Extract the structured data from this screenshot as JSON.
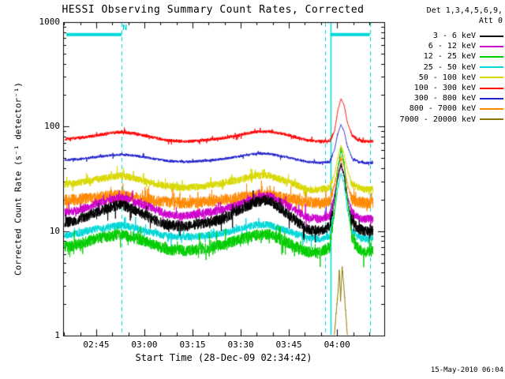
{
  "title": "HESSI Observing Summary Count Rates, Corrected",
  "timestamp": "15-May-2010 06:04",
  "legend": {
    "header_line1": "Det 1,3,4,5,6,9,",
    "header_line2": "Att 0",
    "entries": [
      {
        "label": "3 - 6 keV",
        "color": "#000000"
      },
      {
        "label": "6 - 12 keV",
        "color": "#cc00cc"
      },
      {
        "label": "12 - 25 keV",
        "color": "#00cc00"
      },
      {
        "label": "25 - 50 keV",
        "color": "#00d7d7"
      },
      {
        "label": "50 - 100 keV",
        "color": "#d8d800"
      },
      {
        "label": "100 - 300 keV",
        "color": "#ff0000"
      },
      {
        "label": "300 - 800 keV",
        "color": "#2222cc"
      },
      {
        "label": "800 - 7000 keV",
        "color": "#ff8800"
      },
      {
        "label": "7000 - 20000 keV",
        "color": "#8b7500"
      }
    ]
  },
  "chart_data": {
    "type": "line",
    "title": "HESSI Observing Summary Count Rates, Corrected",
    "xlabel": "Start Time (28-Dec-09 02:34:42)",
    "ylabel": "Corrected Count Rate (s⁻¹ detector⁻¹)",
    "x_unit": "minutes since 02:34:42",
    "xlim": [
      0,
      100
    ],
    "ylim": [
      1,
      1000
    ],
    "yscale": "log",
    "grid": false,
    "legend_position": "top-right",
    "xticks": [
      {
        "t": 10.3,
        "label": "02:45"
      },
      {
        "t": 25.3,
        "label": "03:00"
      },
      {
        "t": 40.3,
        "label": "03:15"
      },
      {
        "t": 55.3,
        "label": "03:30"
      },
      {
        "t": 70.3,
        "label": "03:45"
      },
      {
        "t": 85.3,
        "label": "04:00"
      }
    ],
    "yticks": [
      {
        "v": 1,
        "label": "1"
      },
      {
        "v": 10,
        "label": "10"
      },
      {
        "v": 100,
        "label": "100"
      },
      {
        "v": 1000,
        "label": "1000"
      }
    ],
    "x_minor_step_min": 5,
    "t_grid": [
      0.5,
      5,
      10,
      15,
      18,
      22,
      27,
      32,
      38,
      44,
      50,
      55,
      60,
      64,
      68,
      72,
      76,
      80,
      83,
      84.5,
      85.5,
      86.5,
      87.5,
      88.5,
      90,
      92,
      94,
      96.5
    ],
    "series": [
      {
        "name": "3 - 6 keV",
        "color": "#000000",
        "noise_dex": 0.05,
        "values": [
          12,
          13,
          15,
          17,
          18,
          16,
          13.5,
          11.5,
          11,
          12,
          13,
          16,
          19,
          20,
          16,
          13,
          10.5,
          10,
          11,
          20,
          32,
          44,
          34,
          20,
          12,
          10.5,
          10,
          10
        ]
      },
      {
        "name": "6 - 12 keV",
        "color": "#cc00cc",
        "noise_dex": 0.04,
        "values": [
          15,
          16,
          18,
          20,
          21,
          19,
          17,
          14.5,
          14,
          15,
          16,
          18,
          21,
          22,
          19,
          16,
          13.5,
          13,
          14,
          22,
          33,
          43,
          35,
          22,
          15,
          13.5,
          13,
          13
        ]
      },
      {
        "name": "12 - 25 keV",
        "color": "#00cc00",
        "noise_dex": 0.055,
        "values": [
          7,
          7.5,
          8.5,
          9,
          9.3,
          8.7,
          7.7,
          6.7,
          6.5,
          6.8,
          7.5,
          8.3,
          9.2,
          9.3,
          8.3,
          7.2,
          6.3,
          6.2,
          7,
          15,
          38,
          62,
          45,
          20,
          8.5,
          6.8,
          6.4,
          6.4
        ]
      },
      {
        "name": "25 - 50 keV",
        "color": "#00d7d7",
        "noise_dex": 0.035,
        "values": [
          9,
          9.5,
          10.5,
          11,
          11.5,
          10.8,
          9.8,
          9,
          8.8,
          9,
          9.6,
          10.5,
          11.5,
          11.5,
          10.5,
          9.5,
          8.6,
          8.4,
          9,
          15,
          25,
          36,
          28,
          16,
          10,
          8.8,
          8.5,
          8.5
        ]
      },
      {
        "name": "50 - 100 keV",
        "color": "#d8d800",
        "noise_dex": 0.035,
        "values": [
          28,
          29,
          31,
          33,
          34,
          32,
          29,
          27,
          26,
          27,
          29,
          31,
          34,
          34,
          31,
          28,
          25,
          25,
          26,
          35,
          50,
          65,
          55,
          38,
          28,
          26,
          25,
          25
        ]
      },
      {
        "name": "100 - 300 keV",
        "color": "#ff0000",
        "noise_dex": 0.015,
        "values": [
          76,
          78,
          82,
          87,
          89,
          86,
          80,
          74,
          72,
          74,
          78,
          83,
          89,
          90,
          86,
          80,
          74,
          72,
          73,
          90,
          140,
          185,
          160,
          110,
          82,
          74,
          72,
          72
        ]
      },
      {
        "name": "300 - 800 keV",
        "color": "#2222cc",
        "noise_dex": 0.012,
        "values": [
          48,
          49,
          51,
          53,
          54,
          53,
          50,
          47,
          46,
          47,
          49,
          52,
          55,
          55,
          52,
          49,
          46,
          45,
          46,
          60,
          85,
          105,
          90,
          65,
          50,
          46,
          45,
          45
        ]
      },
      {
        "name": "800 - 7000 keV",
        "color": "#ff8800",
        "noise_dex": 0.055,
        "values": [
          20,
          20,
          21,
          22,
          22,
          21,
          20,
          19,
          18.5,
          19,
          20,
          21,
          22,
          22,
          21,
          20,
          19,
          18.5,
          19,
          28,
          40,
          52,
          42,
          28,
          20,
          19,
          18.5,
          18.5
        ]
      },
      {
        "name": "7000 - 20000 keV",
        "color": "#8b7500",
        "noise_dex": 0.05,
        "points": [
          [
            83.5,
            0.5
          ],
          [
            84.3,
            0.9
          ],
          [
            85,
            1.6
          ],
          [
            85.6,
            2.6
          ],
          [
            86,
            4.2
          ],
          [
            86.4,
            2.2
          ],
          [
            86.9,
            4.5
          ],
          [
            87.4,
            3.0
          ],
          [
            87.9,
            1.8
          ],
          [
            88.5,
            1.0
          ],
          [
            89.2,
            0.55
          ]
        ]
      }
    ],
    "flags": {
      "color": "#00d7d7",
      "label": "N",
      "label_t": 19.2,
      "bar_value": 760,
      "night_bars": [
        [
          1,
          18.2
        ],
        [
          83.2,
          95.5
        ]
      ],
      "dashed_t": [
        18.2,
        81.5,
        95.5
      ],
      "solid_t": [
        83.2
      ]
    }
  }
}
